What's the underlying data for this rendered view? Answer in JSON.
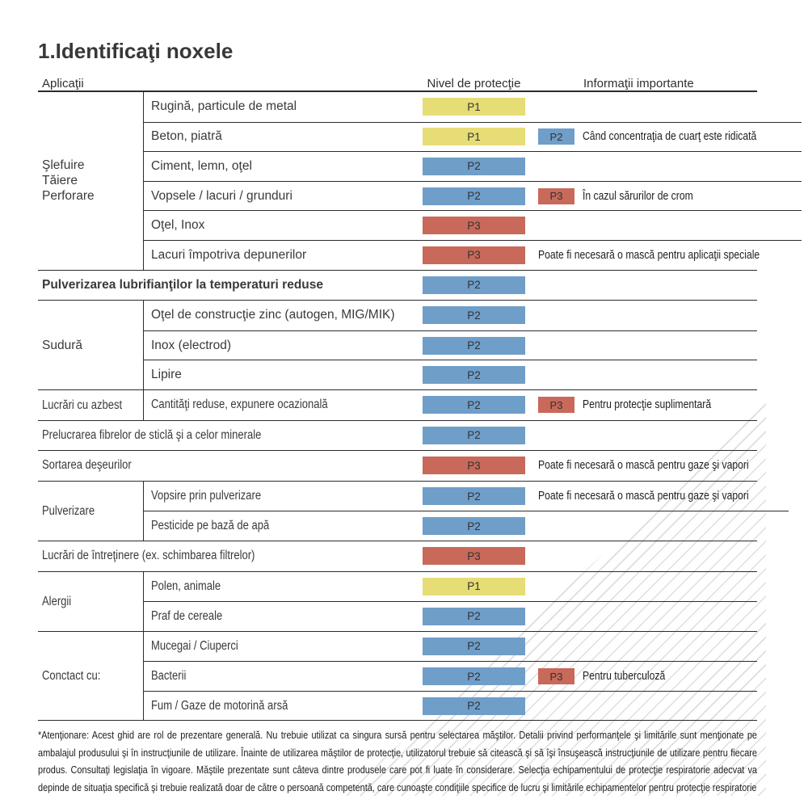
{
  "title": "1.Identificaţi noxele",
  "header": {
    "applications": "Aplicaţii",
    "protection_level": "Nivel de protecţie",
    "important_info": "Informaţii importante"
  },
  "colors": {
    "p1": "#e6dd76",
    "p2": "#6f9ec9",
    "p3": "#c8695a"
  },
  "groups": [
    {
      "category": "Şlefuire\nTăiere\nPerforare",
      "items": [
        {
          "label": "Rugină, particule de metal",
          "level": "P1",
          "color": "#e6dd76",
          "level2": "",
          "color2": "",
          "info": ""
        },
        {
          "label": "Beton, piatră",
          "level": "P1",
          "color": "#e6dd76",
          "level2": "P2",
          "color2": "#6f9ec9",
          "info": "Când concentraţia de cuarţ este ridicată"
        },
        {
          "label": "Ciment, lemn, oţel",
          "level": "P2",
          "color": "#6f9ec9",
          "level2": "",
          "color2": "",
          "info": ""
        },
        {
          "label": "Vopsele / lacuri / grunduri",
          "level": "P2",
          "color": "#6f9ec9",
          "level2": "P3",
          "color2": "#c8695a",
          "info": "În cazul sărurilor de crom"
        },
        {
          "label": "Oţel, Inox",
          "level": "P3",
          "color": "#c8695a",
          "level2": "",
          "color2": "",
          "info": ""
        },
        {
          "label": "Lacuri împotriva depunerilor",
          "level": "P3",
          "color": "#c8695a",
          "level2": "",
          "color2": "",
          "info": "Poate fi necesară o mască pentru aplicaţii speciale"
        }
      ]
    },
    {
      "category": "",
      "items": [
        {
          "label": "Pulverizarea lubrifianţilor la temperaturi reduse",
          "level": "P2",
          "color": "#6f9ec9",
          "level2": "",
          "color2": "",
          "info": ""
        }
      ]
    },
    {
      "category": "Sudură",
      "items": [
        {
          "label": "Oţel de construcţie zinc (autogen, MIG/MIK)",
          "level": "P2",
          "color": "#6f9ec9",
          "level2": "",
          "color2": "",
          "info": ""
        },
        {
          "label": "Inox (electrod)",
          "level": "P2",
          "color": "#6f9ec9",
          "level2": "",
          "color2": "",
          "info": ""
        },
        {
          "label": "Lipire",
          "level": "P2",
          "color": "#6f9ec9",
          "level2": "",
          "color2": "",
          "info": ""
        }
      ]
    },
    {
      "category": "Lucrări cu azbest",
      "items": [
        {
          "label": "Cantităţi reduse, expunere ocazională",
          "level": "P2",
          "color": "#6f9ec9",
          "level2": "P3",
          "color2": "#c8695a",
          "info": "Pentru protecţie suplimentară"
        }
      ]
    },
    {
      "category": "",
      "items": [
        {
          "label": "Prelucrarea fibrelor de sticlă şi a celor minerale",
          "level": "P2",
          "color": "#6f9ec9",
          "level2": "",
          "color2": "",
          "info": ""
        }
      ]
    },
    {
      "category": "",
      "items": [
        {
          "label": "Sortarea deşeurilor",
          "level": "P3",
          "color": "#c8695a",
          "level2": "",
          "color2": "",
          "info": "Poate fi necesară o mască pentru gaze şi vapori"
        }
      ]
    },
    {
      "category": "Pulverizare",
      "items": [
        {
          "label": "Vopsire prin pulverizare",
          "level": "P2",
          "color": "#6f9ec9",
          "level2": "",
          "color2": "",
          "info": "Poate fi necesară o mască pentru gaze şi vapori"
        },
        {
          "label": "Pesticide pe bază de apă",
          "level": "P2",
          "color": "#6f9ec9",
          "level2": "",
          "color2": "",
          "info": ""
        }
      ]
    },
    {
      "category": "",
      "items": [
        {
          "label": "Lucrări de întreţinere (ex. schimbarea filtrelor)",
          "level": "P3",
          "color": "#c8695a",
          "level2": "",
          "color2": "",
          "info": ""
        }
      ]
    },
    {
      "category": "Alergii",
      "items": [
        {
          "label": "Polen, animale",
          "level": "P1",
          "color": "#e6dd76",
          "level2": "",
          "color2": "",
          "info": ""
        },
        {
          "label": "Praf de cereale",
          "level": "P2",
          "color": "#6f9ec9",
          "level2": "",
          "color2": "",
          "info": ""
        }
      ]
    },
    {
      "category": "Conctact cu:",
      "items": [
        {
          "label": "Mucegai / Ciuperci",
          "level": "P2",
          "color": "#6f9ec9",
          "level2": "",
          "color2": "",
          "info": ""
        },
        {
          "label": "Bacterii",
          "level": "P2",
          "color": "#6f9ec9",
          "level2": "P3",
          "color2": "#c8695a",
          "info": "Pentru tuberculoză"
        },
        {
          "label": "Fum / Gaze de motorină arsă",
          "level": "P2",
          "color": "#6f9ec9",
          "level2": "",
          "color2": "",
          "info": ""
        }
      ]
    }
  ],
  "footnote": "*Atenţionare: Acest ghid are rol de prezentare generală. Nu trebuie utilizat ca singura sursă pentru selectarea măştilor. Detalii privind performanţele şi limitările sunt menţionate pe ambalajul produsului şi în instrucţiunile de utilizare. Înainte de utilizarea măştilor de protecţie, utilizatorul trebuie să citească şi să îşi însuşească instrucţiunile de utilizare pentru fiecare produs. Consultaţi legislaţia în vigoare. Măştile prezentate sunt câteva dintre produsele care pot fi luate în considerare. Selecţia echipamentului de protecţie respiratorie adecvat va depinde de situaţia specifică şi trebuie realizată doar de către o persoană competentă, care cunoaşte condiţiile specifice de lucru şi limitările echipamentelor pentru protecţie respiratorie"
}
